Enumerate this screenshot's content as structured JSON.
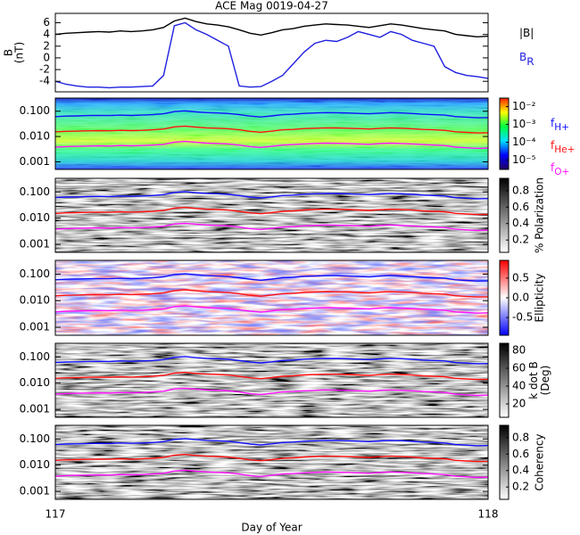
{
  "chart_data": [
    {
      "type": "line",
      "title": "ACE Mag 0019-04-27",
      "ylabel": [
        "B",
        "(nT)"
      ],
      "x": [
        117,
        117.025,
        117.05,
        117.075,
        117.1,
        117.125,
        117.15,
        117.175,
        117.2,
        117.225,
        117.25,
        117.275,
        117.3,
        117.325,
        117.35,
        117.375,
        117.4,
        117.425,
        117.45,
        117.475,
        117.5,
        117.525,
        117.55,
        117.575,
        117.6,
        117.625,
        117.65,
        117.675,
        117.7,
        117.725,
        117.75,
        117.775,
        117.8,
        117.825,
        117.85,
        117.875,
        117.9,
        117.925,
        117.95,
        117.975,
        118
      ],
      "xlim": [
        117,
        118
      ],
      "ylim": [
        -5.8,
        7.6
      ],
      "yticks": [
        -4,
        -2,
        0,
        2,
        4,
        6
      ],
      "legend": "right",
      "series": [
        {
          "name": "|B|",
          "color": "#000000",
          "values": [
            4.0,
            4.2,
            4.3,
            4.4,
            4.5,
            4.4,
            4.6,
            4.5,
            4.6,
            4.8,
            5.2,
            6.3,
            6.8,
            6.2,
            5.8,
            5.6,
            5.3,
            4.8,
            4.2,
            3.9,
            4.3,
            4.8,
            5.0,
            5.4,
            5.6,
            5.8,
            5.7,
            5.6,
            5.4,
            5.2,
            5.5,
            5.8,
            5.6,
            5.3,
            5.0,
            4.8,
            4.6,
            4.0,
            3.8,
            3.6,
            3.7
          ]
        },
        {
          "name": "B",
          "name_subscript": "R",
          "color": "#2020e0",
          "values": [
            -4.0,
            -4.5,
            -4.8,
            -5.0,
            -5.0,
            -5.1,
            -5.0,
            -5.0,
            -4.9,
            -4.8,
            -3.0,
            5.5,
            6.0,
            4.8,
            4.0,
            3.0,
            2.0,
            -4.8,
            -5.0,
            -4.9,
            -4.0,
            -3.0,
            -1.0,
            1.0,
            2.5,
            3.0,
            2.8,
            3.5,
            4.5,
            4.0,
            3.5,
            4.5,
            4.0,
            3.0,
            2.5,
            2.0,
            -1.5,
            -2.5,
            -3.0,
            -3.2,
            -3.5
          ]
        }
      ]
    },
    {
      "type": "spectrogram",
      "colormap": "rainbow",
      "log_y": true,
      "log_z": true,
      "x": [
        117,
        117.025,
        117.05,
        117.075,
        117.1,
        117.125,
        117.15,
        117.175,
        117.2,
        117.225,
        117.25,
        117.275,
        117.3,
        117.325,
        117.35,
        117.375,
        117.4,
        117.425,
        117.45,
        117.475,
        117.5,
        117.525,
        117.55,
        117.575,
        117.6,
        117.625,
        117.65,
        117.675,
        117.7,
        117.725,
        117.75,
        117.775,
        117.8,
        117.825,
        117.85,
        117.875,
        117.9,
        117.925,
        117.95,
        117.975,
        118
      ],
      "xlim": [
        117,
        118
      ],
      "ylim": [
        0.0005,
        0.33
      ],
      "yticks": [
        0.001,
        {
          "value": 0.01,
          "label": "0.010"
        },
        {
          "value": 0.1,
          "label": "0.100"
        }
      ],
      "zlim": [
        3e-06,
        0.03
      ],
      "colorbar_ticks": [
        {
          "value": 0.01,
          "label": "10⁻²"
        },
        {
          "value": 0.001,
          "label": "10⁻³"
        },
        {
          "value": 0.0001,
          "label": "10⁻⁴"
        },
        {
          "value": 1e-05,
          "label": "10⁻⁵"
        }
      ],
      "series": [
        {
          "name": "f",
          "name_subscript": "H+",
          "color": "#1010ff",
          "values": [
            0.061,
            0.064,
            0.065,
            0.067,
            0.068,
            0.067,
            0.07,
            0.068,
            0.07,
            0.073,
            0.079,
            0.096,
            0.103,
            0.094,
            0.088,
            0.085,
            0.081,
            0.073,
            0.064,
            0.059,
            0.065,
            0.073,
            0.076,
            0.082,
            0.085,
            0.088,
            0.087,
            0.085,
            0.082,
            0.079,
            0.084,
            0.088,
            0.085,
            0.081,
            0.076,
            0.073,
            0.07,
            0.061,
            0.058,
            0.055,
            0.056
          ]
        },
        {
          "name": "f",
          "name_subscript": "He+",
          "color": "#ff1010",
          "values": [
            0.0153,
            0.016,
            0.0163,
            0.0168,
            0.017,
            0.0168,
            0.0175,
            0.017,
            0.0175,
            0.0183,
            0.0198,
            0.024,
            0.0258,
            0.0235,
            0.022,
            0.0213,
            0.0203,
            0.0183,
            0.016,
            0.0148,
            0.0163,
            0.0183,
            0.019,
            0.0205,
            0.0213,
            0.022,
            0.0218,
            0.0213,
            0.0205,
            0.0198,
            0.021,
            0.022,
            0.0213,
            0.0203,
            0.019,
            0.0183,
            0.0175,
            0.0153,
            0.0145,
            0.0138,
            0.014
          ]
        },
        {
          "name": "f",
          "name_subscript": "O+",
          "color": "#ff10ff",
          "values": [
            0.0038,
            0.004,
            0.0041,
            0.0042,
            0.0043,
            0.0042,
            0.0044,
            0.0043,
            0.0044,
            0.0046,
            0.0049,
            0.006,
            0.0064,
            0.0059,
            0.0055,
            0.0053,
            0.0051,
            0.0046,
            0.004,
            0.0037,
            0.0041,
            0.0046,
            0.0048,
            0.0051,
            0.0053,
            0.0055,
            0.0054,
            0.0053,
            0.0051,
            0.0049,
            0.0053,
            0.0055,
            0.0053,
            0.0051,
            0.0048,
            0.0046,
            0.0044,
            0.0038,
            0.0036,
            0.0034,
            0.0035
          ]
        }
      ]
    },
    {
      "type": "spectrogram",
      "colormap": "gray",
      "log_y": true,
      "xlim": [
        117,
        118
      ],
      "ylim": [
        0.0005,
        0.33
      ],
      "yticks": [
        0.001,
        {
          "value": 0.01,
          "label": "0.010"
        },
        {
          "value": 0.1,
          "label": "0.100"
        }
      ],
      "zlim": [
        0.05,
        0.95
      ],
      "colorbar_ticks": [
        0.2,
        0.4,
        0.6,
        0.8
      ],
      "colorbar_label": "% Polarization"
    },
    {
      "type": "spectrogram",
      "colormap": "bwr",
      "log_y": true,
      "xlim": [
        117,
        118
      ],
      "ylim": [
        0.0005,
        0.33
      ],
      "yticks": [
        0.001,
        {
          "value": 0.01,
          "label": "0.010"
        },
        {
          "value": 0.1,
          "label": "0.100"
        }
      ],
      "zlim": [
        -0.95,
        0.95
      ],
      "colorbar_ticks": [
        0.5,
        {
          "value": 0,
          "label": "0.0"
        },
        -0.5
      ],
      "colorbar_label": "Ellipticity"
    },
    {
      "type": "spectrogram",
      "colormap": "gray",
      "log_y": true,
      "xlim": [
        117,
        118
      ],
      "ylim": [
        0.0005,
        0.33
      ],
      "yticks": [
        0.001,
        {
          "value": 0.01,
          "label": "0.010"
        },
        {
          "value": 0.1,
          "label": "0.100"
        }
      ],
      "zlim": [
        5,
        88
      ],
      "colorbar_ticks": [
        20,
        40,
        60,
        80
      ],
      "colorbar_label": [
        "k dot B",
        "(Deg)"
      ]
    },
    {
      "type": "spectrogram",
      "colormap": "gray",
      "log_y": true,
      "xlim": [
        117,
        118
      ],
      "ylim": [
        0.0005,
        0.33
      ],
      "yticks": [
        0.001,
        {
          "value": 0.01,
          "label": "0.010"
        },
        {
          "value": 0.1,
          "label": "0.100"
        }
      ],
      "zlim": [
        0.05,
        0.95
      ],
      "colorbar_ticks": [
        0.2,
        0.4,
        0.6,
        0.8
      ],
      "colorbar_label": "Coherency",
      "xticks": [
        117,
        118
      ],
      "xlabel": "Day of Year"
    }
  ]
}
